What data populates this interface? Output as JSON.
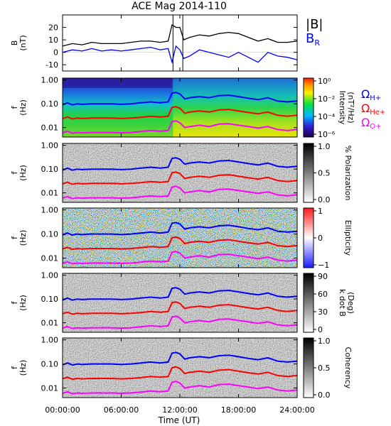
{
  "chart_data": {
    "type": "line",
    "title": "ACE Mag 2014-110",
    "xlabel": "Time (UT)",
    "xticks": [
      "00:00:00",
      "06:00:00",
      "12:00:00",
      "18:00:00",
      "24:00:00"
    ],
    "xlim": [
      0,
      24
    ],
    "colors": {
      "B": "#000000",
      "BR": "#0000ff",
      "H": "#0000ff",
      "He": "#ff0000",
      "O": "#ff00ff"
    },
    "panels": [
      {
        "kind": "line",
        "ylabel": [
          "B",
          "(nT)"
        ],
        "yticks": [
          "20",
          "10",
          "0",
          "-10"
        ],
        "ylim": [
          -15,
          30
        ],
        "legend": {
          "B": "|B|",
          "BR": "B",
          "BR_sub": "R"
        },
        "series": [
          {
            "id": "B",
            "x": [
              0,
              1,
              2,
              3,
              4,
              5,
              6,
              7,
              8,
              9,
              10,
              10.8,
              11.2,
              11.6,
              12,
              12.4,
              13,
              14,
              15,
              16,
              17,
              18,
              19,
              20,
              21,
              22,
              23,
              24
            ],
            "y": [
              5,
              7,
              6,
              8,
              7,
              7,
              7,
              8,
              9,
              9,
              8,
              9,
              22,
              20,
              20,
              10,
              12,
              14,
              13,
              15,
              16,
              15,
              12,
              9,
              11,
              8,
              8,
              9
            ]
          },
          {
            "id": "BR",
            "x": [
              0,
              1,
              2,
              3,
              4,
              5,
              6,
              7,
              8,
              9,
              10,
              10.8,
              11.2,
              11.6,
              12,
              12.4,
              13,
              14,
              15,
              16,
              17,
              18,
              19,
              20,
              21,
              22,
              23,
              24
            ],
            "y": [
              0,
              2,
              1,
              3,
              1,
              2,
              1,
              2,
              3,
              4,
              2,
              3,
              -8,
              5,
              2,
              -5,
              -3,
              2,
              0,
              -2,
              -4,
              0,
              -4,
              -8,
              0,
              -3,
              -4,
              -6
            ]
          }
        ]
      },
      {
        "kind": "spectrogram",
        "ylabel": [
          "f",
          "(Hz)"
        ],
        "yticks": [
          "1.00",
          "0.10",
          "0.01"
        ],
        "ylim": [
          0.004,
          1.2
        ],
        "cbar": {
          "label": [
            "Intensity",
            "(nT²/Hz)"
          ],
          "ticks": [
            "10⁰",
            "10⁻²",
            "10⁻⁴",
            "10⁻⁶"
          ],
          "scale": "rainbow"
        },
        "legend": [
          "Ω",
          "H+",
          "Ω",
          "He+",
          "Ω",
          "O+"
        ]
      },
      {
        "kind": "spectrogram",
        "ylabel": [
          "f",
          "(Hz)"
        ],
        "yticks": [
          "1.00",
          "0.10",
          "0.01"
        ],
        "ylim": [
          0.004,
          1.2
        ],
        "cbar": {
          "label": [
            "% Polarization"
          ],
          "ticks": [
            "1.0",
            "0.5",
            "0.0"
          ],
          "scale": "gray"
        }
      },
      {
        "kind": "spectrogram",
        "ylabel": [
          "f",
          "(Hz)"
        ],
        "yticks": [
          "1.00",
          "0.10",
          "0.01"
        ],
        "ylim": [
          0.004,
          1.2
        ],
        "cbar": {
          "label": [
            "Ellipticity"
          ],
          "ticks": [
            "1",
            "0",
            "−1"
          ],
          "scale": "diverging"
        }
      },
      {
        "kind": "spectrogram",
        "ylabel": [
          "f",
          "(Hz)"
        ],
        "yticks": [
          "1.00",
          "0.10",
          "0.01"
        ],
        "ylim": [
          0.004,
          1.2
        ],
        "cbar": {
          "label": [
            "k dot B",
            "(Deg)"
          ],
          "ticks": [
            "90",
            "60",
            "30",
            "0"
          ],
          "scale": "gray"
        }
      },
      {
        "kind": "spectrogram",
        "ylabel": [
          "f",
          "(Hz)"
        ],
        "yticks": [
          "1.00",
          "0.10",
          "0.01"
        ],
        "ylim": [
          0.004,
          1.2
        ],
        "cbar": {
          "label": [
            "Coherency"
          ],
          "ticks": [
            "1.0",
            "0.5",
            "0.0"
          ],
          "scale": "gray"
        }
      }
    ],
    "gyrofrequency_series": [
      {
        "name": "Ω H+",
        "x": [
          0,
          0.5,
          1,
          1.5,
          2,
          3,
          4,
          5,
          6,
          7,
          8,
          9,
          10,
          10.8,
          11.2,
          11.6,
          12,
          12.5,
          13,
          14,
          15,
          16,
          17,
          18,
          19,
          20,
          21,
          22,
          23,
          24
        ],
        "y": [
          0.09,
          0.11,
          0.09,
          0.1,
          0.095,
          0.1,
          0.1,
          0.1,
          0.095,
          0.1,
          0.11,
          0.12,
          0.11,
          0.12,
          0.28,
          0.3,
          0.26,
          0.16,
          0.18,
          0.2,
          0.18,
          0.22,
          0.23,
          0.2,
          0.17,
          0.15,
          0.18,
          0.13,
          0.12,
          0.13
        ]
      },
      {
        "name": "Ω He+",
        "x": [
          0,
          0.5,
          1,
          1.5,
          2,
          3,
          4,
          5,
          6,
          7,
          8,
          9,
          10,
          10.8,
          11.2,
          11.6,
          12,
          12.5,
          13,
          14,
          15,
          16,
          17,
          18,
          19,
          20,
          21,
          22,
          23,
          24
        ],
        "y": [
          0.024,
          0.028,
          0.023,
          0.025,
          0.024,
          0.025,
          0.025,
          0.025,
          0.024,
          0.025,
          0.027,
          0.03,
          0.028,
          0.03,
          0.07,
          0.075,
          0.065,
          0.04,
          0.045,
          0.05,
          0.045,
          0.055,
          0.058,
          0.05,
          0.043,
          0.038,
          0.045,
          0.033,
          0.03,
          0.033
        ]
      },
      {
        "name": "Ω O+",
        "x": [
          0,
          0.5,
          1,
          1.5,
          2,
          3,
          4,
          5,
          6,
          7,
          8,
          9,
          10,
          10.8,
          11.2,
          11.6,
          12,
          12.5,
          13,
          14,
          15,
          16,
          17,
          18,
          19,
          20,
          21,
          22,
          23,
          24
        ],
        "y": [
          0.006,
          0.007,
          0.0058,
          0.0062,
          0.006,
          0.0062,
          0.0062,
          0.0062,
          0.006,
          0.0062,
          0.0068,
          0.0075,
          0.007,
          0.0075,
          0.0175,
          0.019,
          0.016,
          0.01,
          0.011,
          0.0125,
          0.011,
          0.014,
          0.0145,
          0.0125,
          0.011,
          0.0095,
          0.011,
          0.0083,
          0.0075,
          0.0083
        ]
      }
    ]
  }
}
